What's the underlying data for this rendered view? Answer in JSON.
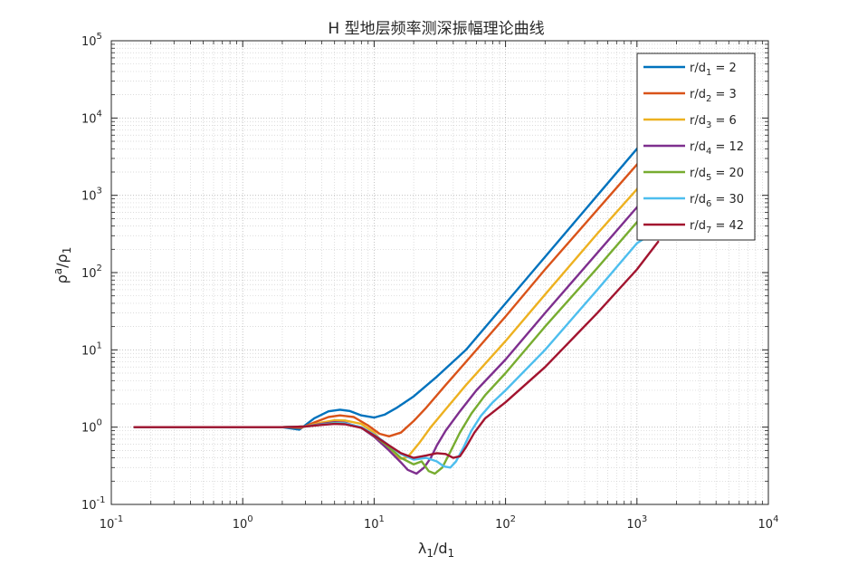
{
  "chart_data": {
    "type": "line",
    "title": "H 型地层频率测深振幅理论曲线",
    "xlabel": {
      "main": "λ",
      "sub1": "1",
      "slash": "/d",
      "sub2": "1"
    },
    "ylabel": {
      "main": "ρ",
      "sup": "a",
      "slash": "/ρ",
      "sub": "1"
    },
    "x_scale": "log",
    "y_scale": "log",
    "xlim": [
      0.1,
      10000
    ],
    "ylim": [
      0.1,
      100000
    ],
    "grid": true,
    "legend_position": "top-right",
    "x_tick_labels": [
      {
        "base": "10",
        "exp": "-1"
      },
      {
        "base": "10",
        "exp": "0"
      },
      {
        "base": "10",
        "exp": "1"
      },
      {
        "base": "10",
        "exp": "2"
      },
      {
        "base": "10",
        "exp": "3"
      },
      {
        "base": "10",
        "exp": "4"
      }
    ],
    "y_tick_labels": [
      {
        "base": "10",
        "exp": "-1"
      },
      {
        "base": "10",
        "exp": "0"
      },
      {
        "base": "10",
        "exp": "1"
      },
      {
        "base": "10",
        "exp": "2"
      },
      {
        "base": "10",
        "exp": "3"
      },
      {
        "base": "10",
        "exp": "4"
      },
      {
        "base": "10",
        "exp": "5"
      }
    ],
    "series": [
      {
        "name": "r/d1 = 2",
        "label_main": "r/d",
        "label_sub": "1",
        "label_rest": " = 2",
        "color": "#0072BD",
        "x": [
          0.15,
          0.5,
          1,
          2,
          2.7,
          3.5,
          4.5,
          5.5,
          6.5,
          8,
          10,
          12,
          15,
          20,
          30,
          50,
          100,
          200,
          500,
          1000,
          1200
        ],
        "y": [
          1.0,
          1.0,
          1.0,
          1.0,
          0.93,
          1.3,
          1.6,
          1.68,
          1.62,
          1.42,
          1.33,
          1.45,
          1.8,
          2.5,
          4.5,
          10,
          40,
          160,
          1000,
          4000,
          6000
        ]
      },
      {
        "name": "r/d2 = 3",
        "label_main": "r/d",
        "label_sub": "2",
        "label_rest": " = 3",
        "color": "#D95319",
        "x": [
          0.15,
          0.5,
          1,
          2,
          2.8,
          3.5,
          4.5,
          5.5,
          7,
          9,
          11,
          13,
          16,
          20,
          25,
          35,
          50,
          100,
          200,
          500,
          1000,
          1200
        ],
        "y": [
          1.0,
          1.0,
          1.0,
          1.0,
          0.98,
          1.15,
          1.35,
          1.42,
          1.35,
          1.05,
          0.82,
          0.76,
          0.85,
          1.2,
          1.8,
          3.5,
          7,
          27,
          110,
          650,
          2500,
          3600
        ]
      },
      {
        "name": "r/d3 = 6",
        "label_main": "r/d",
        "label_sub": "3",
        "label_rest": " = 6",
        "color": "#EDB120",
        "x": [
          0.15,
          0.5,
          1,
          2,
          3,
          4,
          5,
          6,
          8,
          10,
          12,
          14,
          16,
          18,
          22,
          27,
          35,
          50,
          100,
          200,
          500,
          1000,
          1200
        ],
        "y": [
          1.0,
          1.0,
          1.0,
          1.0,
          1.02,
          1.15,
          1.23,
          1.22,
          1.1,
          0.85,
          0.6,
          0.45,
          0.39,
          0.41,
          0.62,
          1.0,
          1.7,
          3.5,
          13,
          52,
          320,
          1200,
          1800
        ]
      },
      {
        "name": "r/d4 = 12",
        "label_main": "r/d",
        "label_sub": "4",
        "label_rest": " = 12",
        "color": "#7E2F8E",
        "x": [
          0.15,
          0.5,
          1,
          2,
          3,
          4,
          5,
          6,
          8,
          10,
          13,
          16,
          18,
          21,
          24,
          27,
          30,
          35,
          45,
          60,
          100,
          200,
          500,
          1000,
          1200
        ],
        "y": [
          1.0,
          1.0,
          1.0,
          1.0,
          1.02,
          1.1,
          1.16,
          1.14,
          0.98,
          0.75,
          0.5,
          0.35,
          0.28,
          0.25,
          0.3,
          0.4,
          0.58,
          0.9,
          1.6,
          3.0,
          7.5,
          30,
          180,
          700,
          1050
        ]
      },
      {
        "name": "r/d5 = 20",
        "label_main": "r/d",
        "label_sub": "5",
        "label_rest": " = 20",
        "color": "#77AC30",
        "x": [
          0.15,
          0.5,
          1,
          2,
          3,
          4,
          5,
          6,
          8,
          10,
          13,
          16,
          20,
          23,
          26,
          29,
          33,
          38,
          45,
          55,
          70,
          100,
          200,
          500,
          1000,
          1200
        ],
        "y": [
          1.0,
          1.0,
          1.0,
          1.0,
          1.02,
          1.08,
          1.13,
          1.12,
          0.98,
          0.78,
          0.55,
          0.4,
          0.33,
          0.36,
          0.27,
          0.25,
          0.3,
          0.48,
          0.85,
          1.5,
          2.6,
          5,
          20,
          115,
          450,
          680
        ]
      },
      {
        "name": "r/d6 = 30",
        "label_main": "r/d",
        "label_sub": "6",
        "label_rest": " = 30",
        "color": "#4DBEEE",
        "x": [
          0.15,
          0.5,
          1,
          2,
          3,
          4,
          5,
          6,
          8,
          10,
          13,
          16,
          20,
          25,
          30,
          34,
          38,
          42,
          48,
          55,
          65,
          80,
          100,
          200,
          500,
          1000,
          1300
        ],
        "y": [
          1.0,
          1.0,
          1.0,
          1.0,
          1.02,
          1.08,
          1.12,
          1.12,
          1.0,
          0.8,
          0.58,
          0.45,
          0.38,
          0.4,
          0.36,
          0.31,
          0.3,
          0.36,
          0.55,
          0.9,
          1.4,
          2.1,
          3.0,
          10,
          60,
          240,
          320
        ]
      },
      {
        "name": "r/d7 = 42",
        "label_main": "r/d",
        "label_sub": "7",
        "label_rest": " = 42",
        "color": "#A2142F",
        "x": [
          0.15,
          0.5,
          1,
          2,
          3,
          4,
          5,
          6,
          8,
          10,
          13,
          16,
          20,
          25,
          30,
          35,
          40,
          45,
          50,
          58,
          70,
          100,
          200,
          500,
          1000,
          1450
        ],
        "y": [
          1.0,
          1.0,
          1.0,
          1.0,
          1.02,
          1.07,
          1.1,
          1.09,
          0.98,
          0.78,
          0.58,
          0.46,
          0.4,
          0.43,
          0.46,
          0.45,
          0.4,
          0.42,
          0.55,
          0.85,
          1.3,
          2.1,
          6,
          30,
          110,
          250
        ]
      }
    ]
  }
}
